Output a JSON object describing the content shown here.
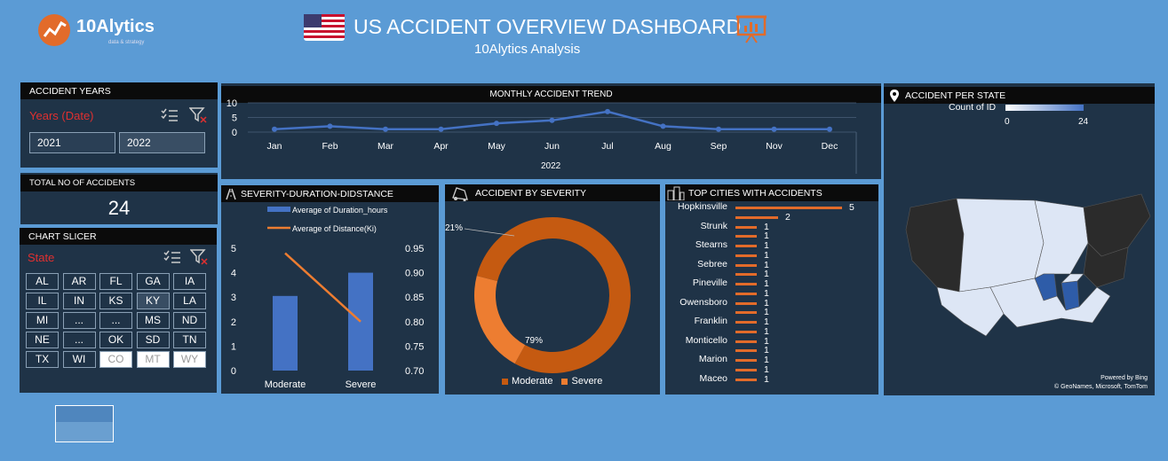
{
  "logo": {
    "name": "10Alytics",
    "tagline": "data & strategy"
  },
  "header": {
    "title": "US ACCIDENT OVERVIEW DASHBOARD",
    "subtitle": "10Alytics Analysis"
  },
  "accident_years": {
    "title": "ACCIDENT YEARS",
    "field": "Years (Date)",
    "items": [
      "2021",
      "2022"
    ],
    "selected": "2022"
  },
  "total": {
    "title": "TOTAL NO OF ACCIDENTS",
    "value": "24"
  },
  "chart_slicer": {
    "title": "CHART SLICER",
    "field": "State",
    "states": [
      "AL",
      "AR",
      "FL",
      "GA",
      "IA",
      "IL",
      "IN",
      "KS",
      "KY",
      "LA",
      "MI",
      "...",
      "...",
      "MS",
      "ND",
      "NE",
      "...",
      "OK",
      "SD",
      "TN",
      "TX",
      "WI",
      "CO",
      "MT",
      "WY"
    ],
    "disabled": [
      "CO",
      "MT",
      "WY"
    ],
    "selected": [
      "KY"
    ]
  },
  "monthly": {
    "title": "MONTHLY ACCIDENT TREND",
    "year_label": "2022"
  },
  "severity_duration": {
    "title": "SEVERITY-DURATION-DIDSTANCE",
    "legend_bar": "Average of Duration_hours",
    "legend_line": "Average of Distance(Ki)"
  },
  "by_severity": {
    "title": "ACCIDENT BY SEVERITY",
    "label_moderate_pct": "79%",
    "label_severe_pct": "21%"
  },
  "top_cities": {
    "title": "TOP CITIES WITH ACCIDENTS"
  },
  "map": {
    "title": "ACCIDENT PER STATE",
    "legend_title": "Count of ID",
    "legend_min": "0",
    "legend_max": "24",
    "credit1": "Powered by Bing",
    "credit2": "© GeoNames, Microsoft, TomTom"
  },
  "colors": {
    "accent_orange": "#e26b2a",
    "bar_blue": "#4472c4",
    "panel": "#1f3347",
    "background": "#5b9bd5"
  },
  "chart_data": [
    {
      "type": "line",
      "title": "MONTHLY ACCIDENT TREND",
      "categories": [
        "Jan",
        "Feb",
        "Mar",
        "Apr",
        "May",
        "Jun",
        "Jul",
        "Aug",
        "Sep",
        "Nov",
        "Dec"
      ],
      "values": [
        1,
        2,
        1,
        1,
        3,
        4,
        7,
        2,
        1,
        1,
        1
      ],
      "ylim": [
        0,
        10
      ],
      "yticks": [
        "10",
        "5",
        "0"
      ],
      "xlabel": "2022"
    },
    {
      "type": "bar",
      "title": "SEVERITY-DURATION-DIDSTANCE",
      "categories": [
        "Moderate",
        "Severe"
      ],
      "series": [
        {
          "name": "Average of Duration_hours",
          "values": [
            3.05,
            4.0
          ],
          "axis": "left"
        },
        {
          "name": "Average of Distance(Ki)",
          "values": [
            0.94,
            0.8
          ],
          "axis": "right",
          "type": "line"
        }
      ],
      "ylim_left": [
        0,
        5
      ],
      "left_ticks": [
        "5",
        "4",
        "3",
        "2",
        "1",
        "0"
      ],
      "ylim_right": [
        0.7,
        0.95
      ],
      "right_ticks": [
        "0.95",
        "0.90",
        "0.85",
        "0.80",
        "0.75",
        "0.70"
      ]
    },
    {
      "type": "pie",
      "title": "ACCIDENT BY SEVERITY",
      "categories": [
        "Moderate",
        "Severe"
      ],
      "values": [
        79,
        21
      ],
      "donut": true
    },
    {
      "type": "bar",
      "title": "TOP CITIES WITH ACCIDENTS",
      "orientation": "horizontal",
      "categories": [
        "Hopkinsville",
        "",
        "Strunk",
        "",
        "Stearns",
        "",
        "Sebree",
        "",
        "Pineville",
        "",
        "Owensboro",
        "",
        "Franklin",
        "",
        "Monticello",
        "",
        "Marion",
        "",
        "Maceo"
      ],
      "values": [
        5,
        2,
        1,
        1,
        1,
        1,
        1,
        1,
        1,
        1,
        1,
        1,
        1,
        1,
        1,
        1,
        1,
        1,
        1
      ],
      "value_labels": [
        "5",
        "2",
        "1",
        "1",
        "1",
        "1",
        "1",
        "1",
        "1",
        "1",
        "1",
        "1",
        "1",
        "1",
        "1",
        "1",
        "1",
        "1",
        "1"
      ]
    }
  ]
}
